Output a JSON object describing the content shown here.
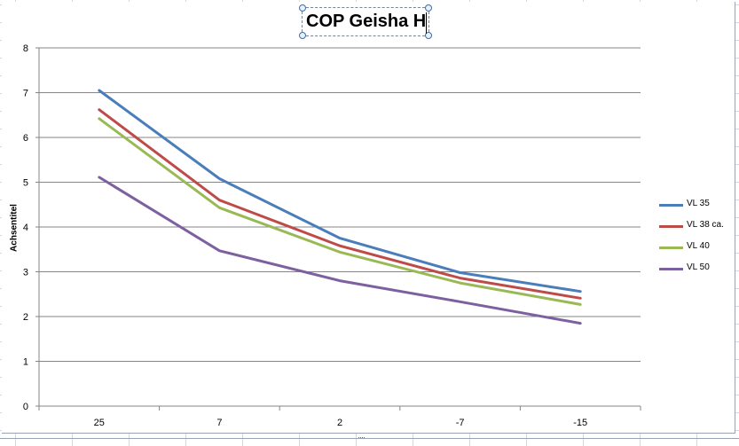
{
  "chart_data": {
    "type": "line",
    "title": "COP Geisha H",
    "ylabel": "Achsentitel",
    "xlabel": "",
    "categories": [
      "25",
      "7",
      "2",
      "-7",
      "-15"
    ],
    "ylim": [
      0,
      8
    ],
    "yticks": [
      0,
      1,
      2,
      3,
      4,
      5,
      6,
      7,
      8
    ],
    "grid": "horizontal",
    "legend": "right",
    "series": [
      {
        "name": "VL 35",
        "color": "#4a7ebb",
        "values": [
          7.05,
          5.08,
          3.75,
          2.98,
          2.56
        ]
      },
      {
        "name": "VL 38 ca.",
        "color": "#be4b48",
        "values": [
          6.62,
          4.6,
          3.58,
          2.86,
          2.41
        ]
      },
      {
        "name": "VL 40",
        "color": "#98b954",
        "values": [
          6.42,
          4.43,
          3.44,
          2.75,
          2.27
        ]
      },
      {
        "name": "VL 50",
        "color": "#7d60a0",
        "values": [
          5.11,
          3.47,
          2.8,
          2.33,
          1.85
        ]
      }
    ]
  }
}
